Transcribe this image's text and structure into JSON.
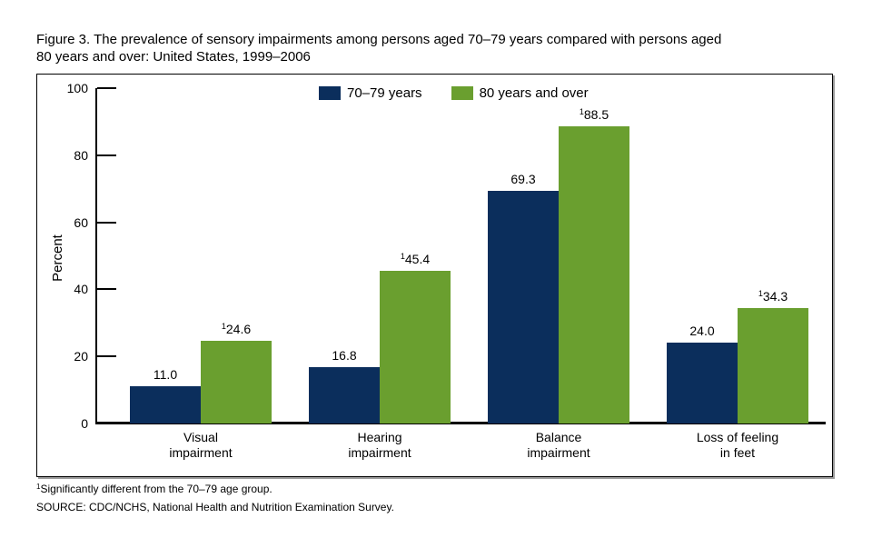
{
  "chart_data": {
    "type": "bar",
    "title": "Figure 3. The prevalence of sensory impairments among persons aged 70–79 years compared with persons aged\n80 years and over: United States, 1999–2006",
    "ylabel": "Percent",
    "ylim": [
      0,
      100
    ],
    "yticks": [
      0,
      20,
      40,
      60,
      80,
      100
    ],
    "grid": false,
    "legend_position": "top-center",
    "categories": [
      "Visual\nimpairment",
      "Hearing\nimpairment",
      "Balance\nimpairment",
      "Loss of feeling\nin feet"
    ],
    "series": [
      {
        "name": "70–79 years",
        "color": "#0b2e5c",
        "values": [
          11.0,
          16.8,
          69.3,
          24.0
        ],
        "label_sup": ""
      },
      {
        "name": "80 years and over",
        "color": "#6a9f2f",
        "values": [
          24.6,
          45.4,
          88.5,
          34.3
        ],
        "label_sup": "1"
      }
    ]
  },
  "footnotes": [
    {
      "sup": "1",
      "text": "Significantly different from the 70–79 age group."
    },
    {
      "sup": "",
      "text": "SOURCE: CDC/NCHS, National Health and Nutrition Examination Survey."
    }
  ]
}
